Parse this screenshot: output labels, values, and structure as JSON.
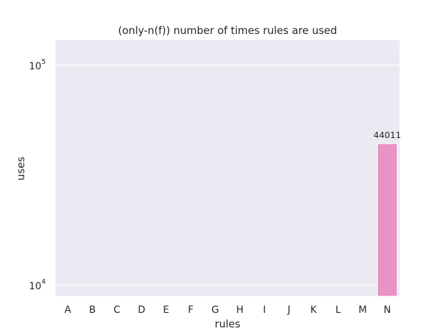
{
  "chart_data": {
    "type": "bar",
    "title": "(only-n(f)) number of times rules are used",
    "xlabel": "rules",
    "ylabel": "uses",
    "categories": [
      "A",
      "B",
      "C",
      "D",
      "E",
      "F",
      "G",
      "H",
      "I",
      "J",
      "K",
      "L",
      "M",
      "N"
    ],
    "values": [
      null,
      null,
      null,
      null,
      null,
      null,
      null,
      null,
      null,
      null,
      null,
      null,
      null,
      44011
    ],
    "data_labels": [
      "",
      "",
      "",
      "",
      "",
      "",
      "",
      "",
      "",
      "",
      "",
      "",
      "",
      "44011"
    ],
    "yscale": "log",
    "ylim": [
      8900,
      130000
    ],
    "yticks": [
      {
        "value": 10000,
        "base": "10",
        "exp": "4"
      },
      {
        "value": 100000,
        "base": "10",
        "exp": "5"
      }
    ],
    "grid": true,
    "colors": {
      "plot_background": "#eaeaf2",
      "grid": "#ffffff",
      "bars": [
        "#8c8c8c",
        "#8c8c8c",
        "#8c8c8c",
        "#8c8c8c",
        "#8c8c8c",
        "#8c8c8c",
        "#8c8c8c",
        "#8c8c8c",
        "#8c8c8c",
        "#8c8c8c",
        "#8c8c8c",
        "#8c8c8c",
        "#8c8c8c",
        "#e992c4"
      ]
    }
  }
}
